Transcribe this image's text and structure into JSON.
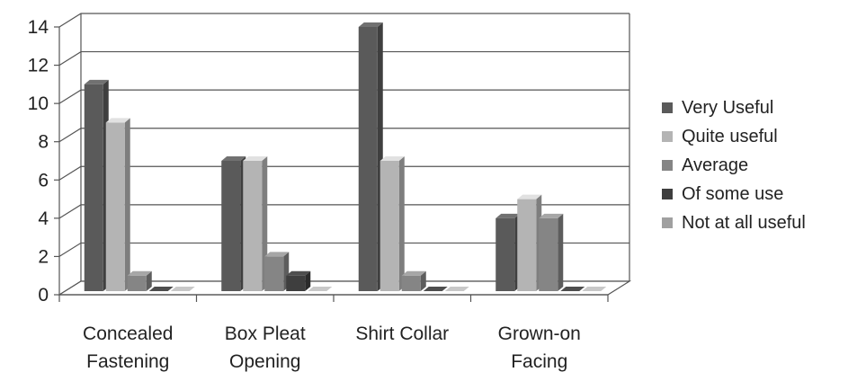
{
  "chart_data": {
    "type": "bar",
    "title": "",
    "xlabel": "",
    "ylabel": "",
    "categories": [
      [
        "Concealed",
        "Fastening"
      ],
      [
        "Box Pleat",
        "Opening"
      ],
      [
        "Shirt Collar"
      ],
      [
        "Grown-on",
        "Facing"
      ]
    ],
    "series": [
      {
        "name": "Very Useful",
        "values": [
          11,
          7,
          14,
          4
        ],
        "color": "#5a5a5a"
      },
      {
        "name": "Quite useful",
        "values": [
          9,
          7,
          7,
          5
        ],
        "color": "#b4b4b4"
      },
      {
        "name": "Average",
        "values": [
          1,
          2,
          1,
          4
        ],
        "color": "#858585"
      },
      {
        "name": "Of some use",
        "values": [
          0,
          1,
          0,
          0
        ],
        "color": "#3e3e3e"
      },
      {
        "name": "Not at all useful",
        "values": [
          0,
          0,
          0,
          0
        ],
        "color": "#a0a0a0"
      }
    ],
    "ylim": [
      0,
      14
    ],
    "yticks": [
      "0",
      "2",
      "4",
      "6",
      "8",
      "10",
      "12",
      "14"
    ],
    "grid": true,
    "legend_position": "right",
    "style": "3d-clustered-column"
  }
}
